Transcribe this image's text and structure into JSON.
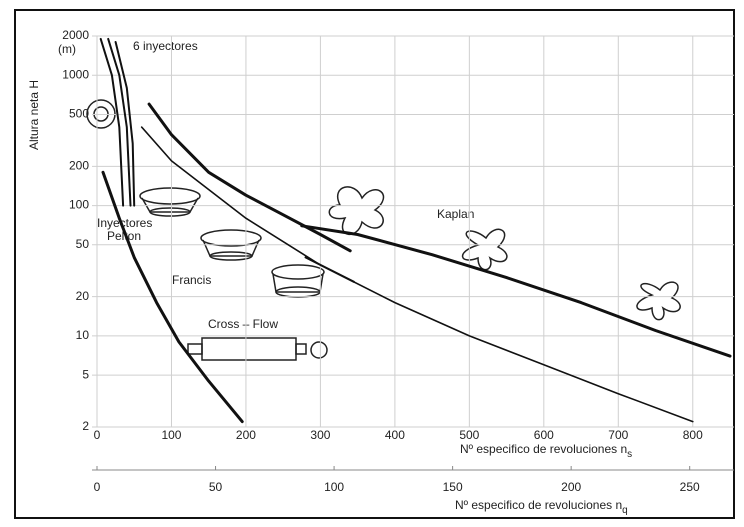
{
  "chart_data": {
    "type": "line",
    "y_label": "Altura neta H",
    "y_unit": "(m)",
    "x_label": "Nº especifico de revoluciones",
    "x_symbol": "n",
    "x_subscript": "s",
    "x2_label": "Nº especifico de revoluciones",
    "x2_symbol": "n",
    "x2_subscript": "q",
    "annotations": [
      "6 inyectores",
      "Inyectores",
      "Pelton",
      "Francis",
      "Kaplan",
      "Cross – Flow"
    ],
    "log_y": true,
    "grid": true,
    "xlim": [
      0,
      850
    ],
    "xticks": [
      0,
      100,
      200,
      300,
      400,
      500,
      600,
      700,
      800
    ],
    "x2lim": [
      0,
      267
    ],
    "x2ticks": [
      0,
      50,
      100,
      150,
      200,
      250
    ],
    "ylim": [
      2,
      2000
    ],
    "yticks": [
      2,
      5,
      10,
      20,
      50,
      100,
      200,
      500,
      1000,
      2000
    ],
    "series": [
      {
        "color": "#111111",
        "line_width": 3,
        "x": [
          8,
          30,
          50,
          80,
          110,
          150,
          195
        ],
        "values": [
          180,
          80,
          40,
          18,
          9,
          4.5,
          2.2
        ]
      },
      {
        "color": "#111111",
        "line_width": 3,
        "x": [
          70,
          100,
          150,
          200,
          250,
          300,
          340
        ],
        "values": [
          600,
          350,
          180,
          120,
          85,
          60,
          45
        ]
      },
      {
        "color": "#111111",
        "line_width": 1.6,
        "x": [
          60,
          100,
          200,
          300,
          400,
          500,
          600,
          700,
          800
        ],
        "values": [
          400,
          220,
          80,
          35,
          18,
          10,
          6,
          3.6,
          2.2
        ]
      },
      {
        "color": "#111111",
        "line_width": 2,
        "x": [
          280,
          345
        ],
        "values": [
          40,
          26
        ]
      },
      {
        "color": "#111111",
        "line_width": 3,
        "x": [
          275,
          350,
          450,
          550,
          650,
          750,
          850
        ],
        "values": [
          70,
          60,
          42,
          28,
          18,
          11,
          7
        ]
      },
      {
        "color": "#111111",
        "line_width": 2,
        "x": [
          5,
          20,
          30,
          35
        ],
        "values": [
          1900,
          1000,
          400,
          100
        ]
      },
      {
        "color": "#111111",
        "line_width": 2,
        "x": [
          15,
          30,
          40,
          45
        ],
        "values": [
          1900,
          1000,
          400,
          100
        ]
      },
      {
        "color": "#111111",
        "line_width": 2,
        "x": [
          25,
          40,
          48,
          50
        ],
        "values": [
          1800,
          800,
          300,
          100
        ]
      }
    ]
  }
}
